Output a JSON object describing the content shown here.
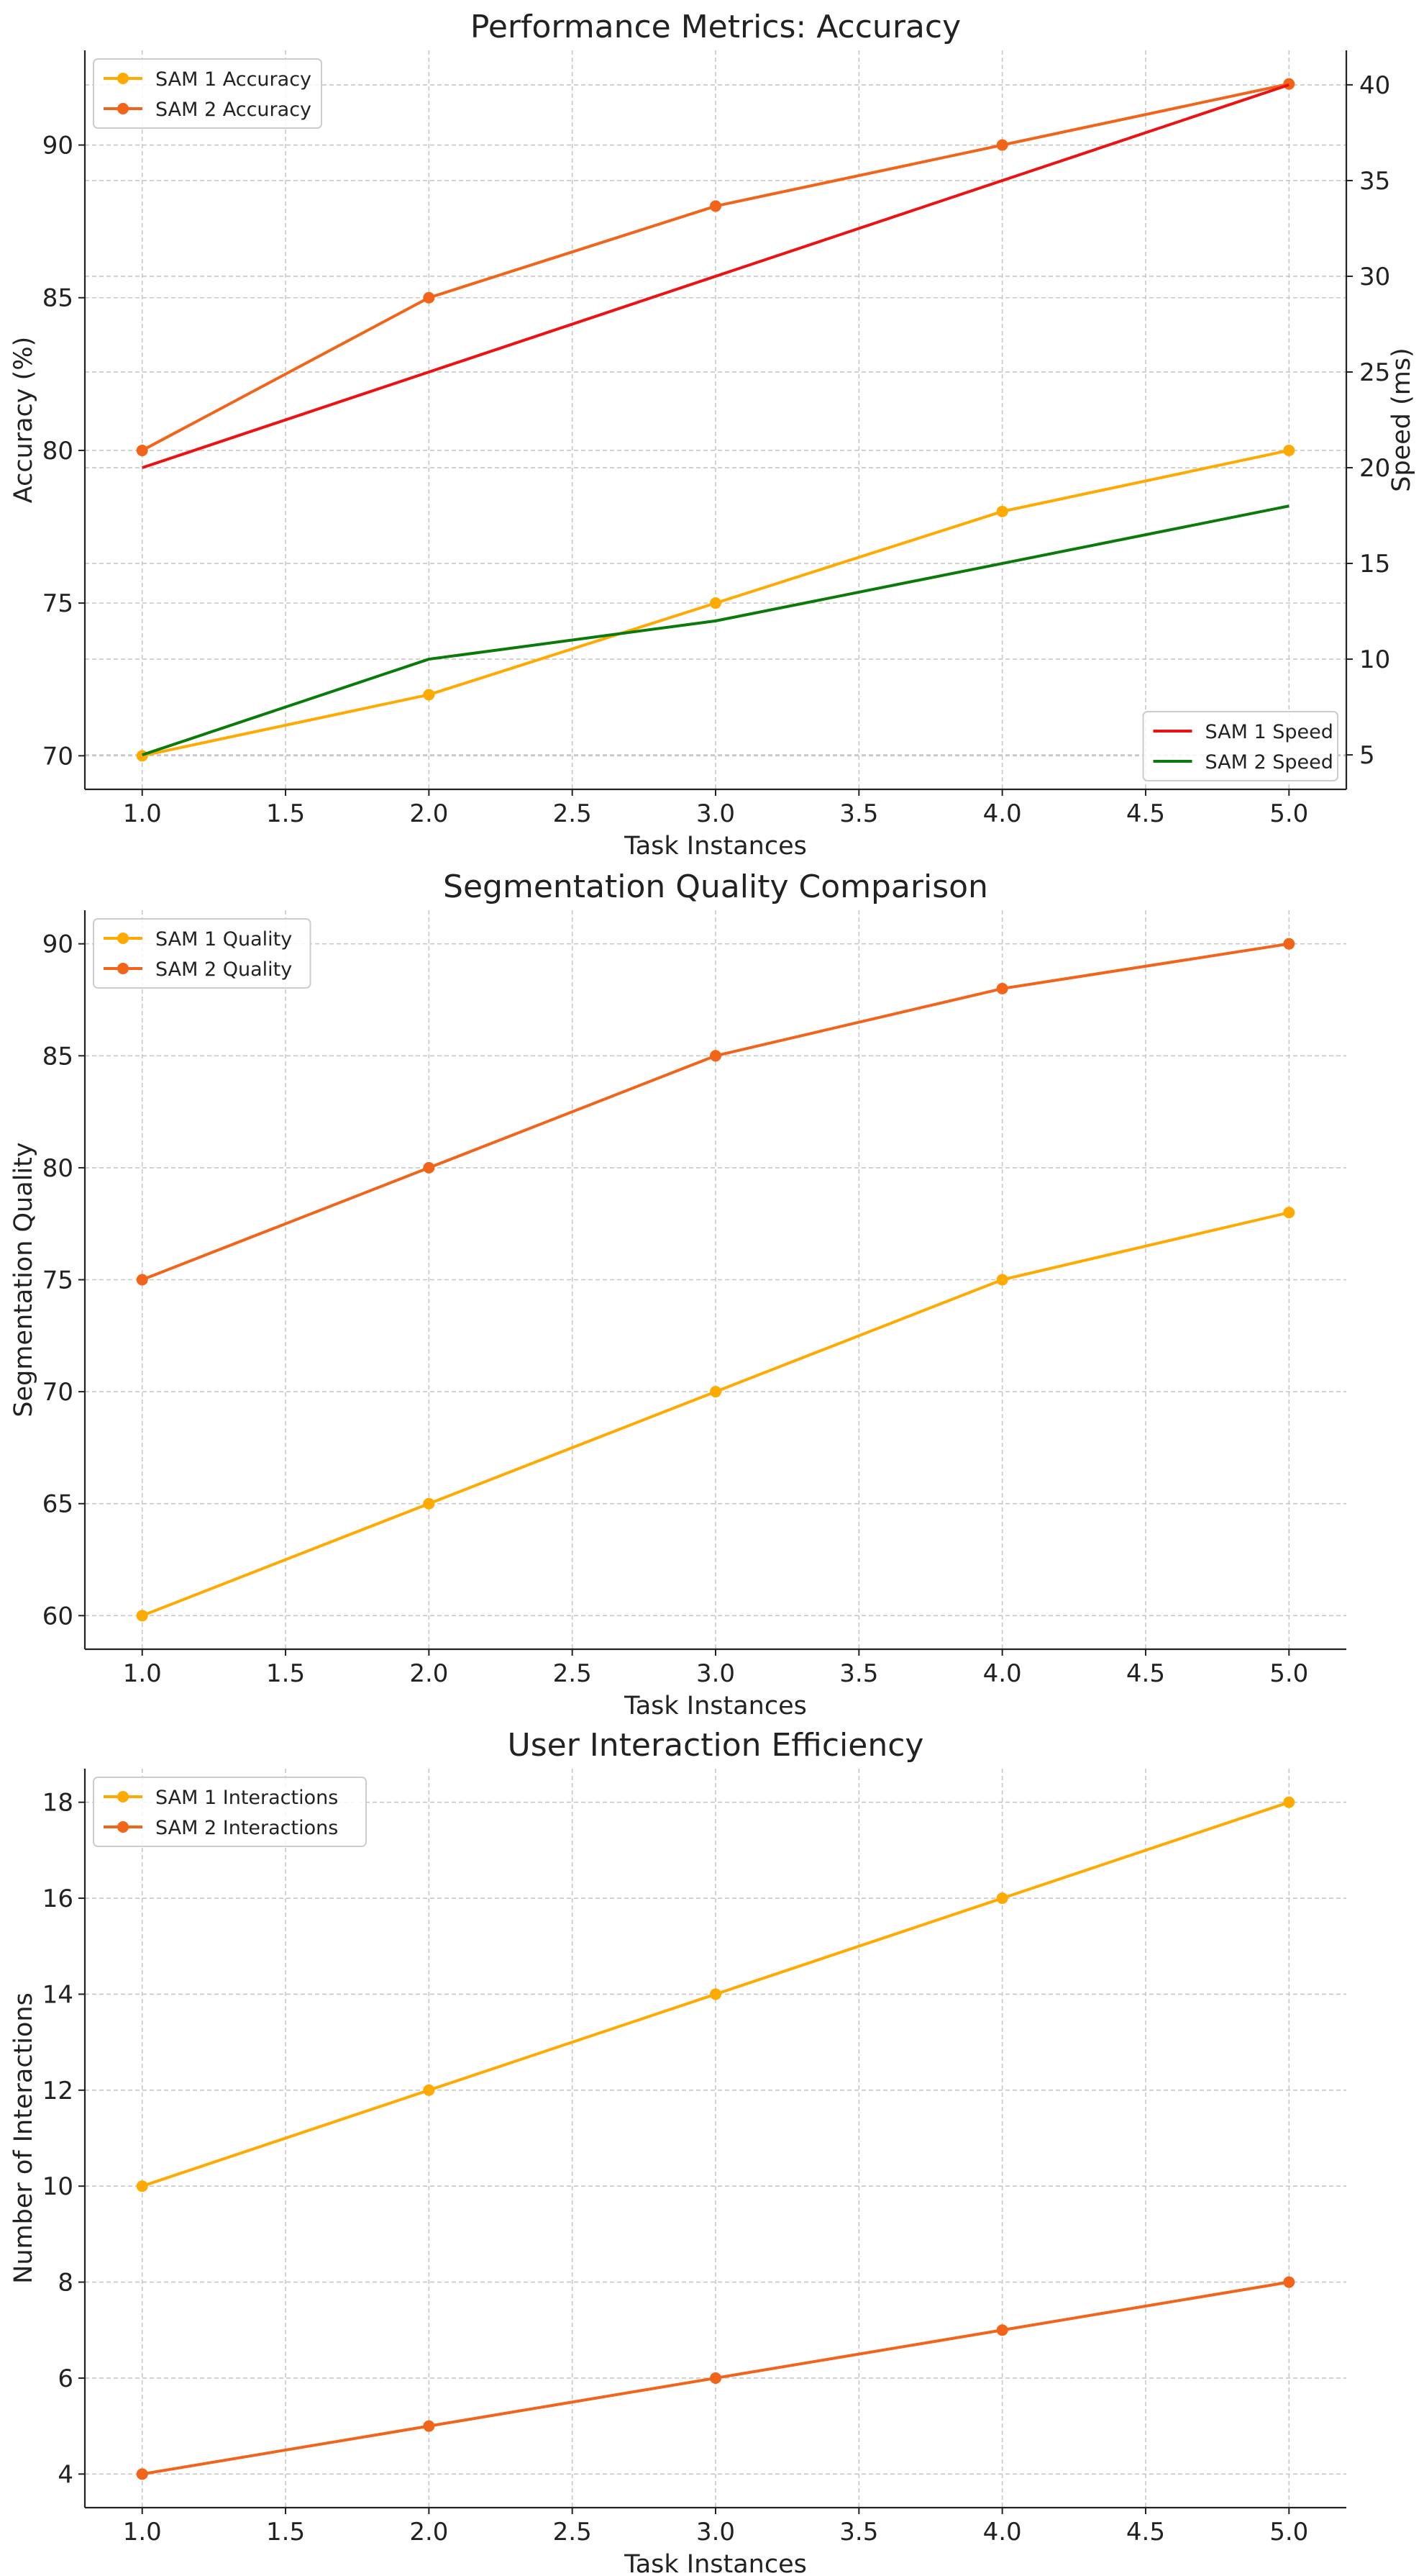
{
  "colors": {
    "sam1": "#FFAA00",
    "sam2": "#F26419",
    "sam1_speed": "#EE1111",
    "sam2_speed": "#0A7A0A"
  },
  "chart_data": [
    {
      "type": "line",
      "title": "Performance Metrics: Accuracy",
      "xlabel": "Task Instances",
      "ylabel": "Accuracy (%)",
      "y2label": "Speed (ms)",
      "grid": true,
      "xlim": [
        0.8,
        5.2
      ],
      "ylim": [
        68.9,
        93.1
      ],
      "y2lim": [
        3.2,
        41.8
      ],
      "xticks": [
        "1.0",
        "1.5",
        "2.0",
        "2.5",
        "3.0",
        "3.5",
        "4.0",
        "4.5",
        "5.0"
      ],
      "yticks": [
        "70",
        "75",
        "80",
        "85",
        "90"
      ],
      "y2ticks": [
        "5",
        "10",
        "15",
        "20",
        "25",
        "30",
        "35",
        "40"
      ],
      "x": [
        1,
        2,
        3,
        4,
        5
      ],
      "series": [
        {
          "name": "SAM 1 Accuracy",
          "axis": "left",
          "marker": true,
          "color": "#FFAA00",
          "values": [
            70,
            72,
            75,
            78,
            80
          ]
        },
        {
          "name": "SAM 2 Accuracy",
          "axis": "left",
          "marker": true,
          "color": "#F26419",
          "values": [
            80,
            85,
            88,
            90,
            92
          ]
        },
        {
          "name": "SAM 1 Speed",
          "axis": "right",
          "marker": false,
          "color": "#EE1111",
          "values": [
            20,
            25,
            30,
            35,
            40
          ]
        },
        {
          "name": "SAM 2 Speed",
          "axis": "right",
          "marker": false,
          "color": "#0A7A0A",
          "values": [
            5,
            10,
            12,
            15,
            18
          ]
        }
      ],
      "legends": [
        {
          "placement": "top-left",
          "items": [
            "SAM 1 Accuracy",
            "SAM 2 Accuracy"
          ]
        },
        {
          "placement": "bottom-right",
          "items": [
            "SAM 1 Speed",
            "SAM 2 Speed"
          ]
        }
      ]
    },
    {
      "type": "line",
      "title": "Segmentation Quality Comparison",
      "xlabel": "Task Instances",
      "ylabel": "Segmentation Quality",
      "grid": true,
      "xlim": [
        0.8,
        5.2
      ],
      "ylim": [
        58.5,
        91.5
      ],
      "xticks": [
        "1.0",
        "1.5",
        "2.0",
        "2.5",
        "3.0",
        "3.5",
        "4.0",
        "4.5",
        "5.0"
      ],
      "yticks": [
        "60",
        "65",
        "70",
        "75",
        "80",
        "85",
        "90"
      ],
      "x": [
        1,
        2,
        3,
        4,
        5
      ],
      "series": [
        {
          "name": "SAM 1 Quality",
          "axis": "left",
          "marker": true,
          "color": "#FFAA00",
          "values": [
            60,
            65,
            70,
            75,
            78
          ]
        },
        {
          "name": "SAM 2 Quality",
          "axis": "left",
          "marker": true,
          "color": "#F26419",
          "values": [
            75,
            80,
            85,
            88,
            90
          ]
        }
      ],
      "legends": [
        {
          "placement": "top-left",
          "items": [
            "SAM 1 Quality",
            "SAM 2 Quality"
          ]
        }
      ]
    },
    {
      "type": "line",
      "title": "User Interaction Efficiency",
      "xlabel": "Task Instances",
      "ylabel": "Number of Interactions",
      "grid": true,
      "xlim": [
        0.8,
        5.2
      ],
      "ylim": [
        3.3,
        18.7
      ],
      "xticks": [
        "1.0",
        "1.5",
        "2.0",
        "2.5",
        "3.0",
        "3.5",
        "4.0",
        "4.5",
        "5.0"
      ],
      "yticks": [
        "4",
        "6",
        "8",
        "10",
        "12",
        "14",
        "16",
        "18"
      ],
      "x": [
        1,
        2,
        3,
        4,
        5
      ],
      "series": [
        {
          "name": "SAM 1 Interactions",
          "axis": "left",
          "marker": true,
          "color": "#FFAA00",
          "values": [
            10,
            12,
            14,
            16,
            18
          ]
        },
        {
          "name": "SAM 2 Interactions",
          "axis": "left",
          "marker": true,
          "color": "#F26419",
          "values": [
            4,
            5,
            6,
            7,
            8
          ]
        }
      ],
      "legends": [
        {
          "placement": "top-left",
          "items": [
            "SAM 1 Interactions",
            "SAM 2 Interactions"
          ]
        }
      ]
    }
  ]
}
